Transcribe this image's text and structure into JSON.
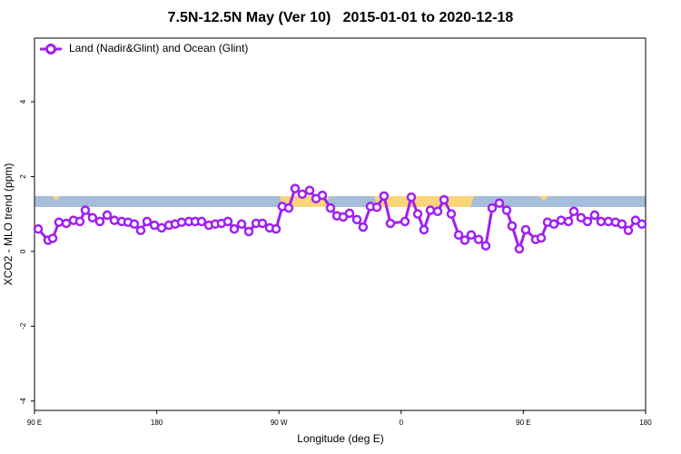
{
  "chart_data": {
    "type": "line",
    "title": "7.5N-12.5N May (Ver 10)   2015-01-01 to 2020-12-18",
    "x_label": "Longitude (deg E)",
    "y_label": "XCO2 - MLO trend (ppm)",
    "xlim": [
      90,
      540
    ],
    "xticks": [
      {
        "value": 90,
        "label": "90 E"
      },
      {
        "value": 180,
        "label": "180"
      },
      {
        "value": 270,
        "label": "90 W"
      },
      {
        "value": 360,
        "label": "0"
      },
      {
        "value": 450,
        "label": "90 E"
      },
      {
        "value": 540,
        "label": "180"
      }
    ],
    "ylim": [
      -4.25,
      5.7
    ],
    "yticks": [
      -4,
      -2,
      0,
      2,
      4
    ],
    "grid": false,
    "legend": "top-left",
    "series": [
      {
        "name": "Land (Nadir&Glint) and Ocean (Glint)",
        "color": "#a020f0",
        "x": [
          92.7,
          100,
          103.4,
          108,
          113.4,
          118.7,
          123.4,
          127.4,
          132.7,
          138.1,
          143.5,
          148.8,
          154.2,
          158.9,
          163.5,
          168.2,
          172.9,
          178.3,
          183.6,
          189,
          193.6,
          198.3,
          203.7,
          208.3,
          213,
          218.4,
          223.1,
          227.7,
          232.4,
          237.1,
          242.5,
          247.8,
          253.2,
          257.8,
          263.2,
          267.9,
          272.5,
          277.2,
          281.9,
          287.2,
          292.6,
          297.3,
          302,
          308,
          312.7,
          317.3,
          322,
          327.4,
          332,
          337.4,
          342.1,
          347.4,
          352.1,
          362.8,
          367.5,
          372.2,
          376.8,
          381.5,
          386.9,
          391.6,
          396.9,
          402.3,
          406.9,
          411.6,
          417,
          422.3,
          427,
          432.3,
          437.7,
          441.7,
          447,
          451.7,
          459.1,
          463.1,
          467.8,
          472.5,
          477.8,
          483.2,
          487.2,
          492.5,
          497.2,
          502.5,
          507.2,
          512.6,
          517.9,
          522.6,
          527.3,
          532.6,
          537.3
        ],
        "values": [
          0.6,
          0.3,
          0.35,
          0.78,
          0.75,
          0.83,
          0.8,
          1.1,
          0.9,
          0.8,
          0.97,
          0.83,
          0.8,
          0.78,
          0.73,
          0.56,
          0.8,
          0.7,
          0.63,
          0.7,
          0.73,
          0.78,
          0.8,
          0.8,
          0.8,
          0.7,
          0.73,
          0.75,
          0.8,
          0.6,
          0.73,
          0.53,
          0.75,
          0.75,
          0.63,
          0.6,
          1.2,
          1.16,
          1.68,
          1.53,
          1.63,
          1.41,
          1.5,
          1.16,
          0.95,
          0.92,
          1.02,
          0.85,
          0.65,
          1.2,
          1.18,
          1.48,
          0.75,
          0.8,
          1.45,
          1.0,
          0.58,
          1.1,
          1.07,
          1.38,
          1.0,
          0.44,
          0.3,
          0.44,
          0.32,
          0.15,
          1.16,
          1.29,
          1.1,
          0.68,
          0.07,
          0.58,
          0.32,
          0.36,
          0.78,
          0.73,
          0.83,
          0.8,
          1.07,
          0.9,
          0.8,
          0.97,
          0.8,
          0.8,
          0.78,
          0.73,
          0.56,
          0.83,
          0.73
        ]
      }
    ]
  }
}
